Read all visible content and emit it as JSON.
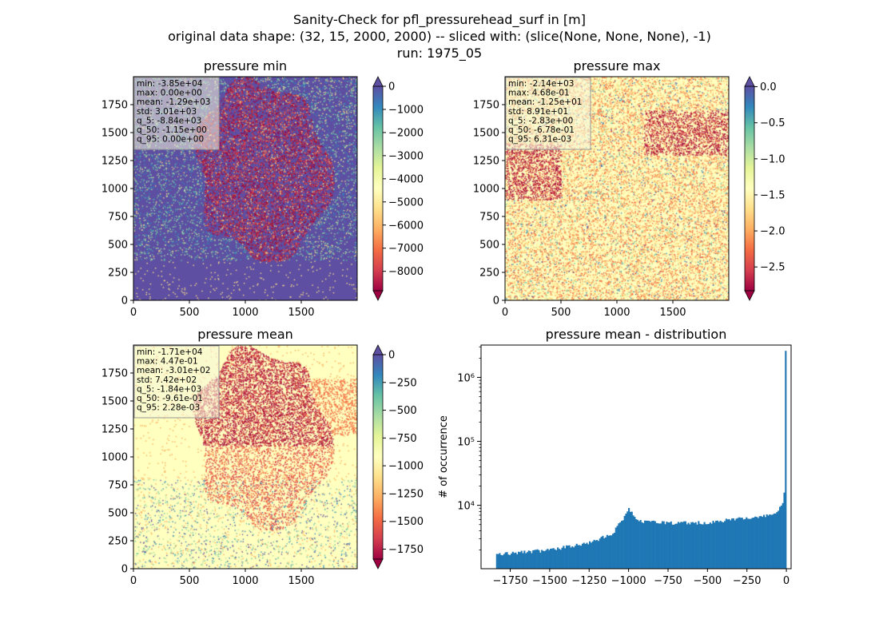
{
  "figure": {
    "title_lines": [
      "Sanity-Check for pfl_pressurehead_surf in [m]",
      "original data shape: (32, 15, 2000, 2000) -- sliced with: (slice(None, None, None), -1)",
      "run: 1975_05"
    ]
  },
  "colormap": {
    "name": "Spectral",
    "stops": [
      "#9e0142",
      "#d53e4f",
      "#f46d43",
      "#fdae61",
      "#fee08b",
      "#ffffbf",
      "#e6f598",
      "#abdda4",
      "#66c2a5",
      "#3288bd",
      "#5e4fa2"
    ]
  },
  "chart_data": [
    {
      "type": "heatmap",
      "title": "pressure min",
      "x_ticks": [
        "0",
        "500",
        "1000",
        "1500"
      ],
      "y_ticks": [
        "0",
        "250",
        "500",
        "750",
        "1000",
        "1250",
        "1500",
        "1750"
      ],
      "xlim": [
        0,
        2000
      ],
      "ylim": [
        0,
        2000
      ],
      "colorbar": {
        "ticks": [
          "0",
          "−1000",
          "−2000",
          "−3000",
          "−4000",
          "−5000",
          "−6000",
          "−7000",
          "−8000"
        ],
        "tick_values": [
          0,
          -1000,
          -2000,
          -3000,
          -4000,
          -5000,
          -6000,
          -7000,
          -8000
        ],
        "range": [
          -8840,
          0
        ],
        "extend": "both"
      },
      "stats": [
        "min: -3.85e+04",
        "max: 0.00e+00",
        "mean: -1.29e+03",
        "std: 3.01e+03",
        "q_5: -8.84e+03",
        "q_50: -1.15e+00",
        "q_95: 0.00e+00"
      ]
    },
    {
      "type": "heatmap",
      "title": "pressure max",
      "x_ticks": [
        "0",
        "500",
        "1000",
        "1500"
      ],
      "y_ticks": [
        "0",
        "250",
        "500",
        "750",
        "1000",
        "1250",
        "1500",
        "1750"
      ],
      "xlim": [
        0,
        2000
      ],
      "ylim": [
        0,
        2000
      ],
      "colorbar": {
        "ticks": [
          "0.0",
          "−0.5",
          "−1.0",
          "−1.5",
          "−2.0",
          "−2.5"
        ],
        "tick_values": [
          0,
          -0.5,
          -1.0,
          -1.5,
          -2.0,
          -2.5
        ],
        "range": [
          -2.83,
          0.00631
        ],
        "extend": "both"
      },
      "stats": [
        "min: -2.14e+03",
        "max: 4.68e-01",
        "mean: -1.25e+01",
        "std: 8.91e+01",
        "q_5: -2.83e+00",
        "q_50: -6.78e-01",
        "q_95: 6.31e-03"
      ]
    },
    {
      "type": "heatmap",
      "title": "pressure mean",
      "x_ticks": [
        "0",
        "500",
        "1000",
        "1500"
      ],
      "y_ticks": [
        "0",
        "250",
        "500",
        "750",
        "1000",
        "1250",
        "1500",
        "1750"
      ],
      "xlim": [
        0,
        2000
      ],
      "ylim": [
        0,
        2000
      ],
      "colorbar": {
        "ticks": [
          "0",
          "−250",
          "−500",
          "−750",
          "−1000",
          "−1250",
          "−1500",
          "−1750"
        ],
        "tick_values": [
          0,
          -250,
          -500,
          -750,
          -1000,
          -1250,
          -1500,
          -1750
        ],
        "range": [
          -1840,
          0.00228
        ],
        "extend": "both"
      },
      "stats": [
        "min: -1.71e+04",
        "max: 4.47e-01",
        "mean: -3.01e+02",
        "std: 7.42e+02",
        "q_5: -1.84e+03",
        "q_50: -9.61e-01",
        "q_95: 2.28e-03"
      ]
    },
    {
      "type": "bar",
      "subtype": "histogram",
      "title": "pressure mean - distribution",
      "xlabel": "",
      "ylabel": "# of occurrence",
      "x_ticks": [
        "−1750",
        "−1500",
        "−1250",
        "−1000",
        "−750",
        "−500",
        "−250",
        "0"
      ],
      "x_tick_values": [
        -1750,
        -1500,
        -1250,
        -1000,
        -750,
        -500,
        -250,
        0
      ],
      "y_ticks": [
        "10⁴",
        "10⁵",
        "10⁶"
      ],
      "y_tick_values": [
        10000,
        100000,
        1000000
      ],
      "y_scale": "log",
      "xlim": [
        -1935,
        30
      ],
      "ylim": [
        1020,
        3200000
      ],
      "color": "#1f77b4",
      "bin_range": [
        -1840,
        0
      ],
      "bins": 200,
      "profile": [
        [
          -1840,
          1700
        ],
        [
          -1500,
          2000
        ],
        [
          -1250,
          2550
        ],
        [
          -1100,
          3700
        ],
        [
          -1030,
          6500
        ],
        [
          -1000,
          9300
        ],
        [
          -975,
          7500
        ],
        [
          -950,
          6100
        ],
        [
          -900,
          5450
        ],
        [
          -750,
          5350
        ],
        [
          -500,
          5300
        ],
        [
          -300,
          6200
        ],
        [
          -150,
          6600
        ],
        [
          -60,
          7600
        ],
        [
          -25,
          10500
        ],
        [
          -10,
          18000
        ],
        [
          -4,
          2600000
        ]
      ]
    }
  ]
}
